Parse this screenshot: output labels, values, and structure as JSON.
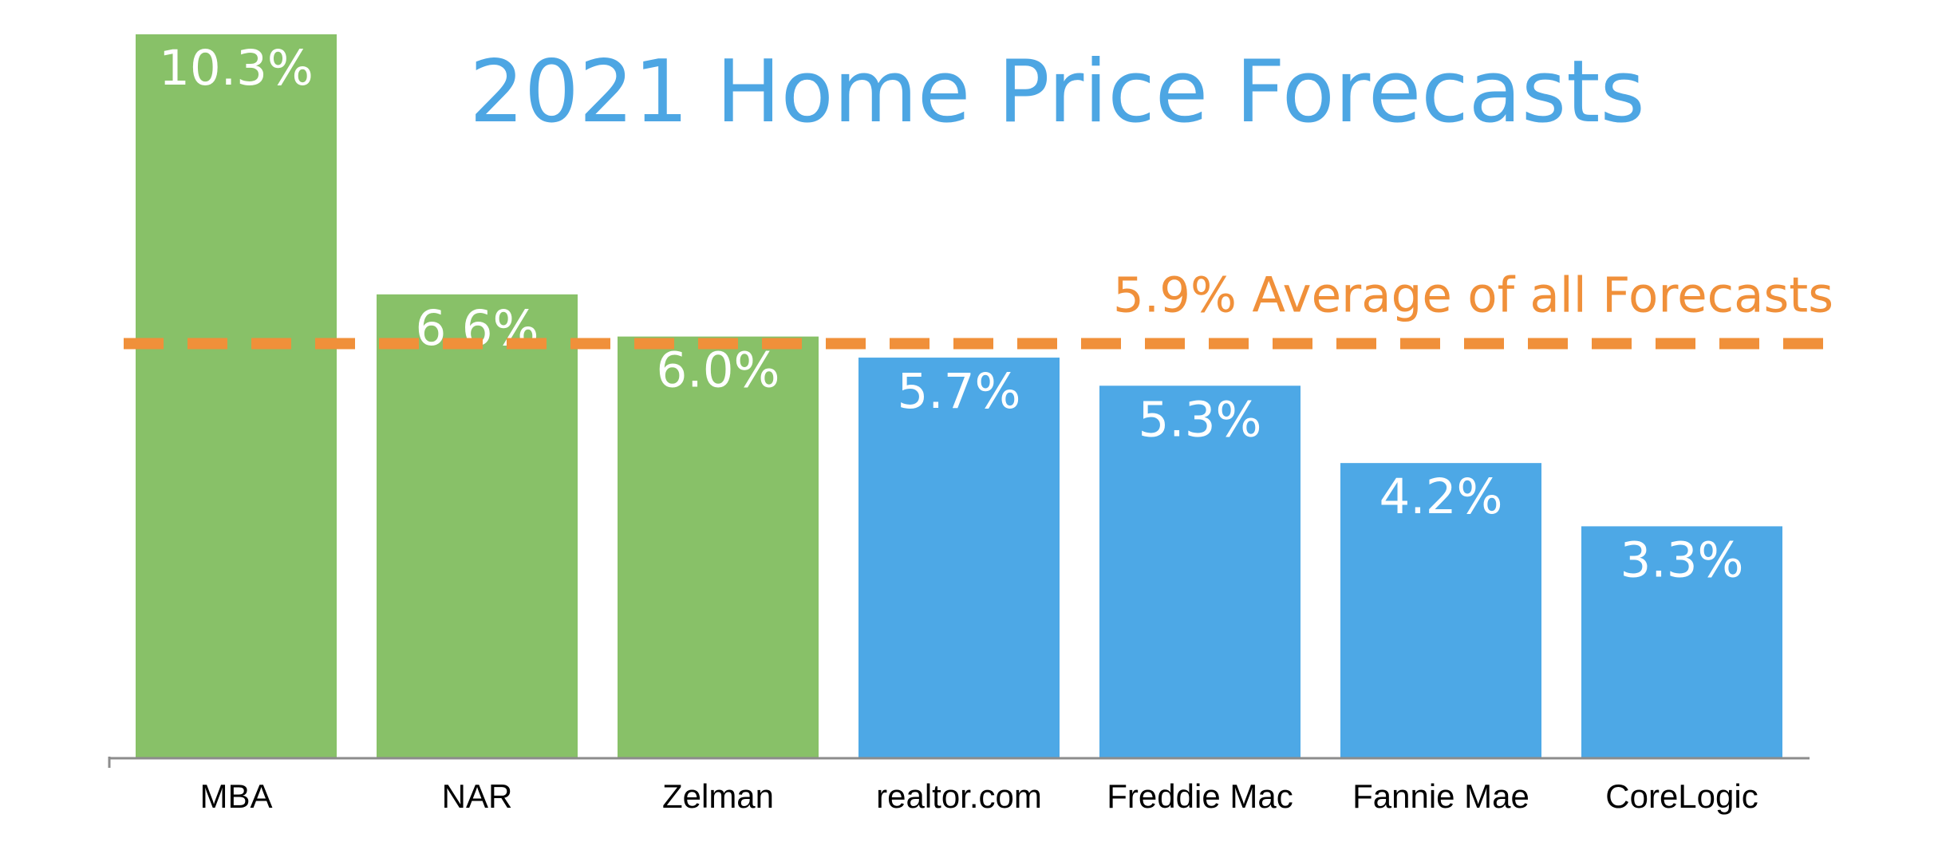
{
  "chart_data": {
    "type": "bar",
    "title": "2021 Home Price Forecasts",
    "xlabel": "",
    "ylabel": "",
    "ylim": [
      0,
      10.3
    ],
    "categories": [
      "MBA",
      "NAR",
      "Zelman",
      "realtor.com",
      "Freddie Mac",
      "Fannie Mae",
      "CoreLogic"
    ],
    "values": [
      10.3,
      6.6,
      6.0,
      5.7,
      5.3,
      4.2,
      3.3
    ],
    "value_labels": [
      "10.3%",
      "6.6%",
      "6.0%",
      "5.7%",
      "5.3%",
      "4.2%",
      "3.3%"
    ],
    "bar_colors": [
      "#88C168",
      "#88C168",
      "#88C168",
      "#4DA8E6",
      "#4DA8E6",
      "#4DA8E6",
      "#4DA8E6"
    ],
    "reference_line": {
      "value": 5.9,
      "label": "5.9% Average of all Forecasts",
      "color": "#F0903A",
      "style": "dashed"
    },
    "grid": false,
    "legend": "none"
  },
  "colors": {
    "title": "#4DA6E3",
    "axis": "#8C8C8C",
    "value_label": "#FFFFFF",
    "category_label": "#000000"
  }
}
